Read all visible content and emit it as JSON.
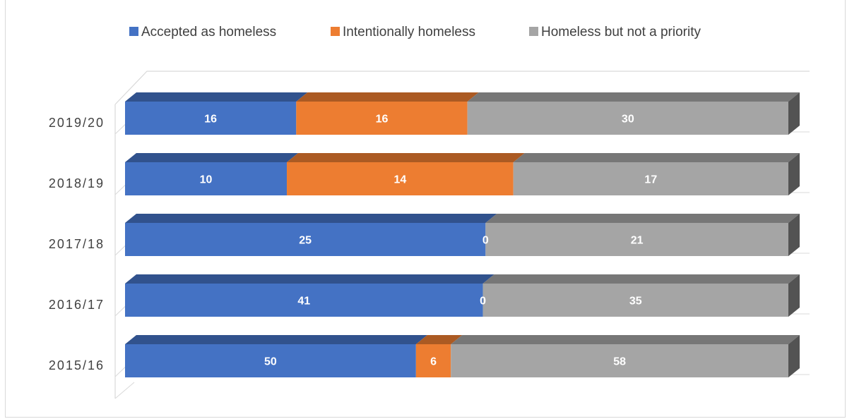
{
  "chart_data": {
    "type": "bar",
    "orientation": "horizontal",
    "stacked": true,
    "style": "3d",
    "categories": [
      "2019/20",
      "2018/19",
      "2017/18",
      "2016/17",
      "2015/16"
    ],
    "series": [
      {
        "name": "Accepted as homeless",
        "values": [
          16,
          10,
          25,
          41,
          50
        ],
        "color": "#4472C4"
      },
      {
        "name": "Intentionally homeless",
        "values": [
          16,
          14,
          0,
          0,
          6
        ],
        "color": "#ED7D31"
      },
      {
        "name": "Homeless but not a priority",
        "values": [
          30,
          17,
          21,
          35,
          58
        ],
        "color": "#A5A5A5"
      }
    ],
    "normalized_100_percent": true,
    "data_labels": true,
    "legend_position": "top",
    "grid": false,
    "title": "",
    "xlabel": "",
    "ylabel": ""
  }
}
